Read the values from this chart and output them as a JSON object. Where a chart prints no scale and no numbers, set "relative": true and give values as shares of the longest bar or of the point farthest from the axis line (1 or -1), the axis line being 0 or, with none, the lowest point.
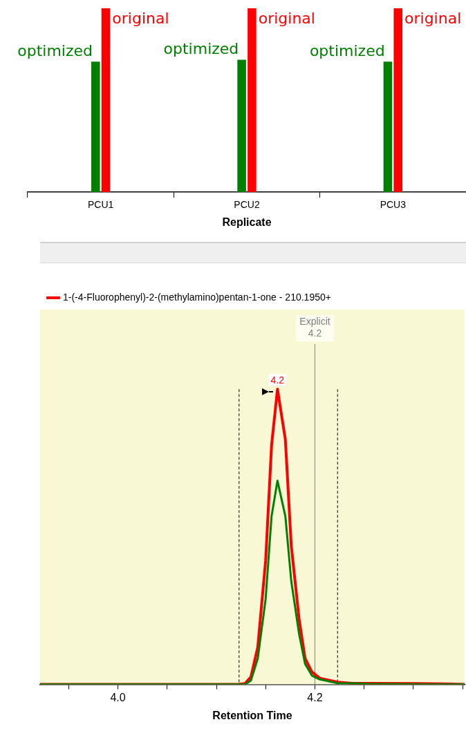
{
  "chart_data": [
    {
      "type": "bar",
      "relative": true,
      "xlabel": "Replicate",
      "categories": [
        "PCU1",
        "PCU2",
        "PCU3"
      ],
      "grid": false,
      "legend": false,
      "series": [
        {
          "name": "optimized",
          "color": "#008000",
          "values": [
            0.71,
            0.72,
            0.71
          ]
        },
        {
          "name": "original",
          "color": "#ff0000",
          "values": [
            1,
            1,
            1
          ]
        }
      ]
    },
    {
      "type": "line",
      "relative": true,
      "xlabel": "Retention Time",
      "legend": "top left",
      "grid": false,
      "marker": "none",
      "line_style": "solid",
      "x": [
        3.921,
        4.112,
        4.122,
        4.129,
        4.135,
        4.142,
        4.15,
        4.156,
        4.162,
        4.17,
        4.176,
        4.184,
        4.19,
        4.197,
        4.205,
        4.223,
        4.238,
        4.253,
        4.3,
        4.33,
        4.352
      ],
      "xlim": [
        3.921,
        4.352
      ],
      "xticks": [
        {
          "value": 3.95,
          "label": null
        },
        {
          "value": 4.0,
          "label": "4.0"
        },
        {
          "value": 4.05,
          "label": null
        },
        {
          "value": 4.1,
          "label": null
        },
        {
          "value": 4.15,
          "label": null
        },
        4.2,
        {
          "value": 4.25,
          "label": null
        },
        {
          "value": 4.3,
          "label": null
        },
        {
          "value": 4.35,
          "label": null
        }
      ],
      "series": [
        {
          "name": "1-(-4-Fluorophenyl)-2-(methylamino)pentan-1-one - 210.1950+",
          "color": "#ff0000",
          "values": [
            0,
            0,
            0,
            0.003,
            0.025,
            0.126,
            0.42,
            0.81,
            1,
            0.83,
            0.47,
            0.22,
            0.088,
            0.042,
            0.021,
            0.008,
            0.004,
            0.004,
            0.003,
            0.002,
            0
          ]
        },
        {
          "color": "#008000",
          "values": [
            0,
            0,
            0,
            0,
            0.013,
            0.088,
            0.29,
            0.57,
            0.69,
            0.57,
            0.35,
            0.17,
            0.07,
            0.03,
            0.017,
            0.004,
            0.004,
            0.002,
            0.001,
            0,
            0
          ]
        }
      ],
      "ref_lines": [
        {
          "axis": "x",
          "value": 4.123,
          "line_style": "dashed",
          "color": "#000000"
        },
        {
          "axis": "x",
          "value": 4.223,
          "line_style": "dashed",
          "color": "#000000"
        },
        {
          "axis": "x",
          "value": 4.2,
          "label": "Explicit 4.2",
          "line_style": "solid",
          "color": "#808080"
        }
      ],
      "annotations": [
        {
          "text": "4.2",
          "x": 4.162,
          "y": 1
        }
      ]
    }
  ]
}
